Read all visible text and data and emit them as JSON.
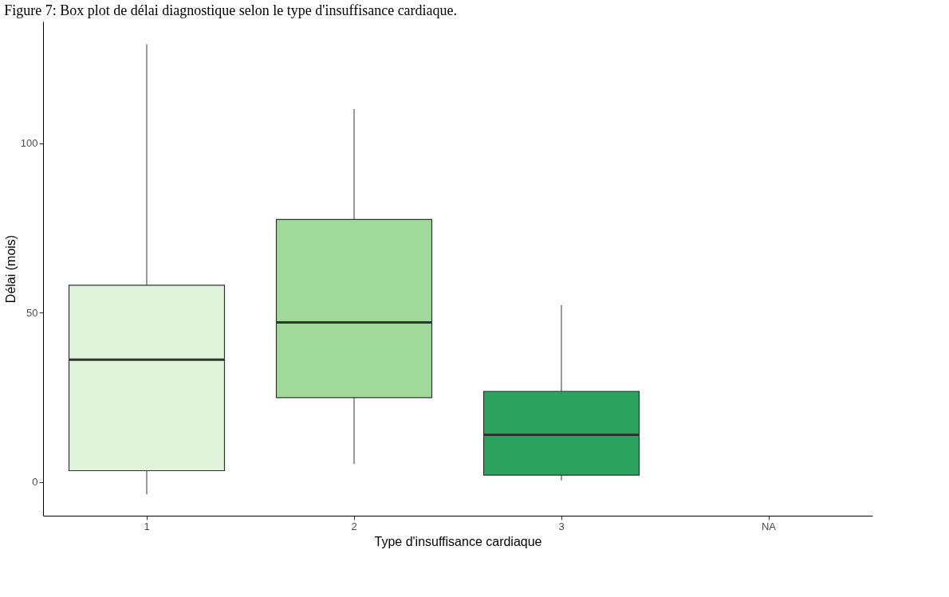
{
  "chart_data": {
    "type": "box",
    "title": "Figure 7: Box plot de délai diagnostique selon le type d'insuffisance cardiaque.",
    "xlabel": "Type d'insuffisance cardiaque",
    "ylabel": "Délai (mois)",
    "categories": [
      "1",
      "2",
      "3",
      "NA"
    ],
    "colors": [
      "#e0f3db",
      "#a1d99b",
      "#2ca25f",
      null
    ],
    "boxes": [
      {
        "low": -3.7,
        "q1": 3.3,
        "median": 36.1,
        "q3": 58.1,
        "high": 129.3
      },
      {
        "low": 5.3,
        "q1": 24.9,
        "median": 47.1,
        "q3": 77.5,
        "high": 110.1
      },
      {
        "low": 0.4,
        "q1": 2.0,
        "median": 13.9,
        "q3": 26.7,
        "high": 52.2
      },
      null
    ],
    "ylim": [
      -10,
      136
    ],
    "yticks": [
      0,
      50,
      100
    ],
    "grid": false
  }
}
